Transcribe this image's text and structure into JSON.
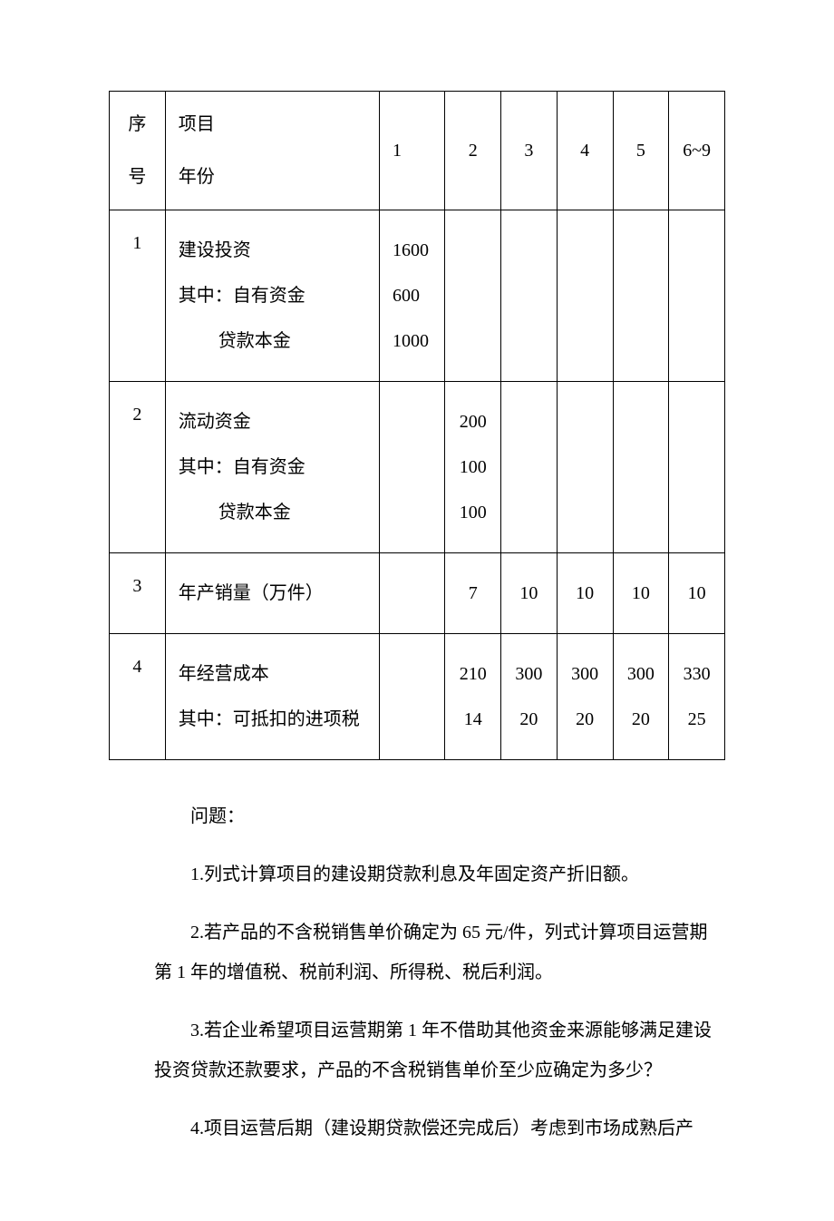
{
  "table": {
    "border_color": "#000000",
    "background_color": "#ffffff",
    "font_color": "#000000",
    "font_size_pt": 15,
    "header": {
      "seq_label": "序号",
      "item_label_line1": "项目",
      "item_label_line2": "年份",
      "cols": [
        "1",
        "2",
        "3",
        "4",
        "5",
        "6~9"
      ]
    },
    "rows": [
      {
        "seq": "1",
        "lines": [
          {
            "label": "建设投资",
            "values": [
              "1600",
              "",
              "",
              "",
              "",
              ""
            ]
          },
          {
            "label": "其中：自有资金",
            "values": [
              "600",
              "",
              "",
              "",
              "",
              ""
            ]
          },
          {
            "label": "贷款本金",
            "indent": true,
            "values": [
              "1000",
              "",
              "",
              "",
              "",
              ""
            ]
          }
        ]
      },
      {
        "seq": "2",
        "lines": [
          {
            "label": "流动资金",
            "values": [
              "",
              "200",
              "",
              "",
              "",
              ""
            ]
          },
          {
            "label": "其中：自有资金",
            "values": [
              "",
              "100",
              "",
              "",
              "",
              ""
            ]
          },
          {
            "label": "贷款本金",
            "indent": true,
            "values": [
              "",
              "100",
              "",
              "",
              "",
              ""
            ]
          }
        ]
      },
      {
        "seq": "3",
        "lines": [
          {
            "label": "年产销量（万件）",
            "values": [
              "",
              "7",
              "10",
              "10",
              "10",
              "10"
            ]
          }
        ]
      },
      {
        "seq": "4",
        "lines": [
          {
            "label": "年经营成本",
            "values": [
              "",
              "210",
              "300",
              "300",
              "300",
              "330"
            ]
          },
          {
            "label": "其中：可抵扣的进项税",
            "values": [
              "",
              "14",
              "20",
              "20",
              "20",
              "25"
            ]
          }
        ]
      }
    ]
  },
  "questions": {
    "intro": "问题：",
    "items": [
      "1.列式计算项目的建设期贷款利息及年固定资产折旧额。",
      "2.若产品的不含税销售单价确定为 65 元/件，列式计算项目运营期第 1 年的增值税、税前利润、所得税、税后利润。",
      "3.若企业希望项目运营期第 1 年不借助其他资金来源能够满足建设投资贷款还款要求，产品的不含税销售单价至少应确定为多少？",
      "4.项目运营后期（建设期贷款偿还完成后）考虑到市场成熟后产"
    ]
  }
}
